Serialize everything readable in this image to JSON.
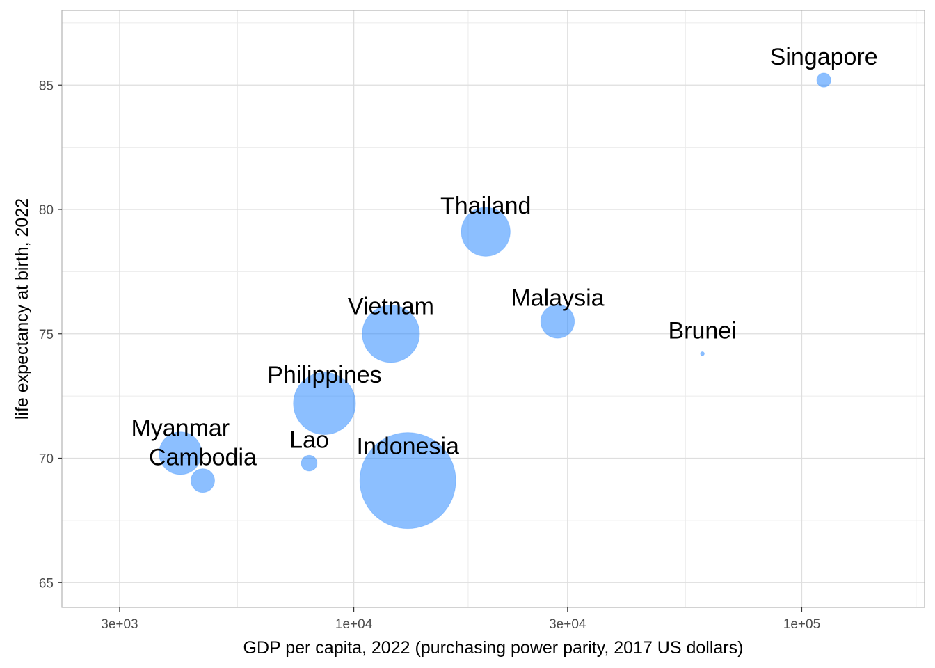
{
  "chart_data": {
    "type": "scatter",
    "xlabel": "GDP per capita, 2022 (purchasing power parity, 2017 US dollars)",
    "ylabel": "life expectancy at birth, 2022",
    "x_scale": "log10",
    "xlim": [
      2230,
      188000
    ],
    "ylim": [
      64.0,
      88.0
    ],
    "x_ticks": [
      {
        "value": 3000,
        "label": "3e+03"
      },
      {
        "value": 10000,
        "label": "1e+04"
      },
      {
        "value": 30000,
        "label": "3e+04"
      },
      {
        "value": 100000,
        "label": "1e+05"
      }
    ],
    "x_minor_ticks": [
      5500,
      18000,
      55000,
      180000
    ],
    "y_ticks": [
      {
        "value": 65,
        "label": "65"
      },
      {
        "value": 70,
        "label": "70"
      },
      {
        "value": 75,
        "label": "75"
      },
      {
        "value": 80,
        "label": "80"
      },
      {
        "value": 85,
        "label": "85"
      }
    ],
    "y_minor_ticks": [
      67.5,
      72.5,
      77.5,
      82.5,
      87.5
    ],
    "grid": true,
    "point_color": "#1a80ff",
    "point_opacity": 0.5,
    "size_variable_note_shown": false,
    "points": [
      {
        "label": "Singapore",
        "x": 112000,
        "y": 85.2,
        "size": 6.0
      },
      {
        "label": "Thailand",
        "x": 19700,
        "y": 79.1,
        "size": 71.6
      },
      {
        "label": "Malaysia",
        "x": 28500,
        "y": 75.5,
        "size": 33.9
      },
      {
        "label": "Brunei",
        "x": 60000,
        "y": 74.2,
        "size": 0.45
      },
      {
        "label": "Vietnam",
        "x": 12100,
        "y": 75.0,
        "size": 98.2
      },
      {
        "label": "Philippines",
        "x": 8600,
        "y": 72.2,
        "size": 115.6
      },
      {
        "label": "Myanmar",
        "x": 4100,
        "y": 70.2,
        "size": 54.2
      },
      {
        "label": "Cambodia",
        "x": 4600,
        "y": 69.1,
        "size": 16.8
      },
      {
        "label": "Lao",
        "x": 7950,
        "y": 69.8,
        "size": 7.5
      },
      {
        "label": "Indonesia",
        "x": 13200,
        "y": 69.1,
        "size": 275.5
      }
    ]
  }
}
